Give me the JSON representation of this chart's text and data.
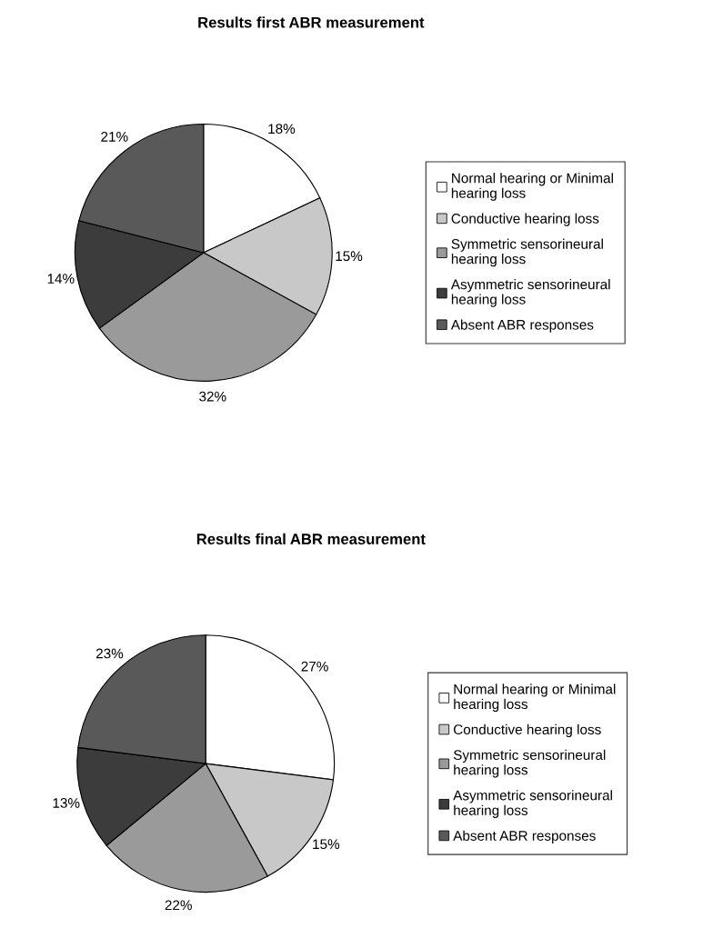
{
  "chart_data": [
    {
      "type": "pie",
      "title": "Results first ABR measurement",
      "categories": [
        "Normal hearing or Minimal hearing loss",
        "Conductive hearing loss",
        "Symmetric sensorineural hearing loss",
        "Asymmetric sensorineural hearing loss",
        "Absent ABR responses"
      ],
      "values": [
        18,
        15,
        32,
        14,
        21
      ],
      "value_labels": [
        "18%",
        "15%",
        "32%",
        "14%",
        "21%"
      ],
      "colors": [
        "#ffffff",
        "#c8c8c8",
        "#9a9a9a",
        "#3c3c3c",
        "#595959"
      ],
      "legend": "right"
    },
    {
      "type": "pie",
      "title": "Results final ABR measurement",
      "categories": [
        "Normal hearing or Minimal hearing loss",
        "Conductive hearing loss",
        "Symmetric sensorineural hearing loss",
        "Asymmetric sensorineural hearing loss",
        "Absent ABR responses"
      ],
      "values": [
        27,
        15,
        22,
        13,
        23
      ],
      "value_labels": [
        "27%",
        "15%",
        "22%",
        "13%",
        "23%"
      ],
      "colors": [
        "#ffffff",
        "#c8c8c8",
        "#9a9a9a",
        "#3c3c3c",
        "#595959"
      ],
      "legend": "right"
    }
  ]
}
